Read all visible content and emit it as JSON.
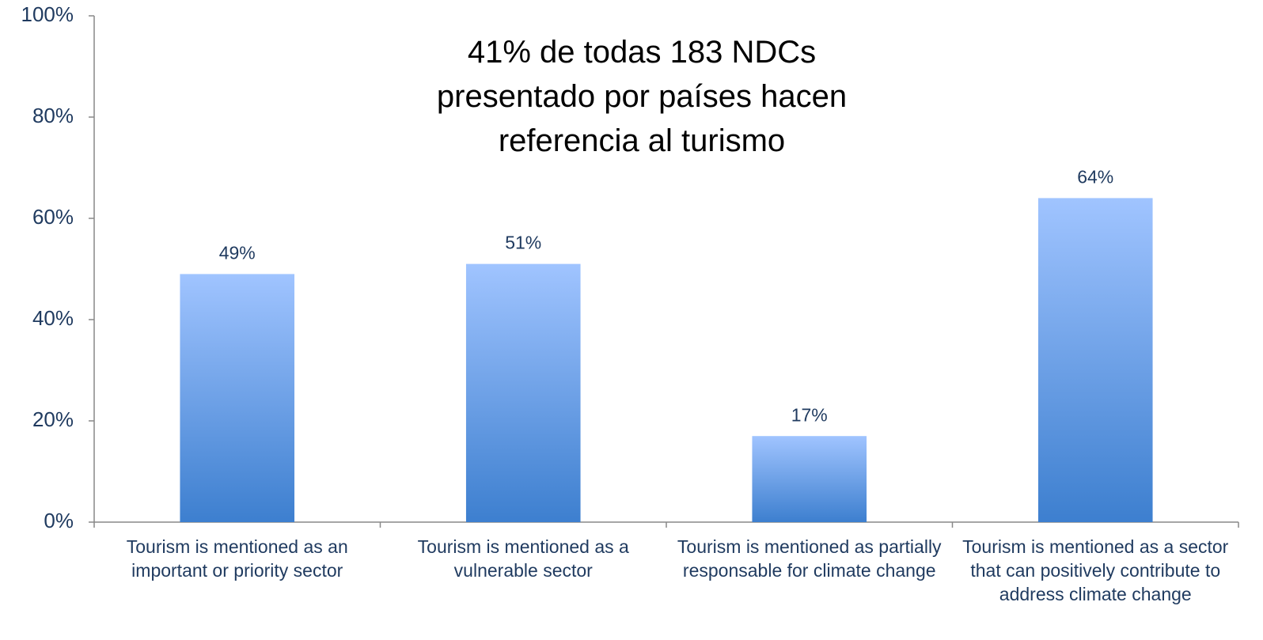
{
  "chart_data": {
    "type": "bar",
    "title": "41% de todas 183 NDCs presentado por países hacen referencia al turismo",
    "categories": [
      "Tourism is mentioned as an important or priority sector",
      "Tourism is mentioned as a vulnerable sector",
      "Tourism is mentioned as partially responsable for climate change",
      "Tourism is mentioned as a sector that can positively contribute to address climate change"
    ],
    "values": [
      49,
      51,
      17,
      64
    ],
    "value_labels": [
      "49%",
      "51%",
      "17%",
      "64%"
    ],
    "color": "#3d7fcf",
    "ylim": [
      0,
      100
    ],
    "yticks": [
      {
        "value": 0,
        "label": "0%"
      },
      {
        "value": 20,
        "label": "20%"
      },
      {
        "value": 40,
        "label": "40%"
      },
      {
        "value": 60,
        "label": "60%"
      },
      {
        "value": 80,
        "label": "80%"
      },
      {
        "value": 100,
        "label": "100%"
      }
    ],
    "grid": false
  }
}
